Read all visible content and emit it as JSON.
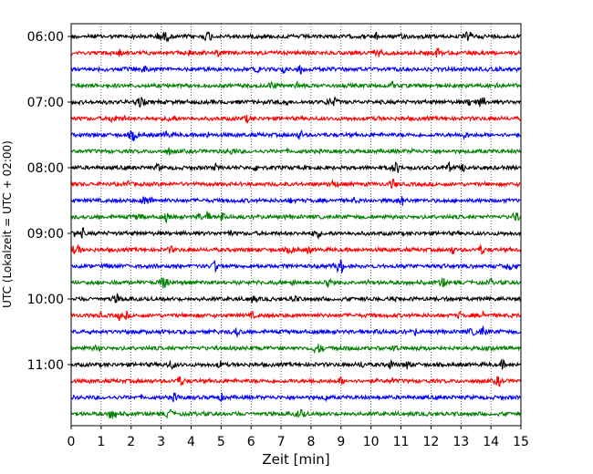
{
  "chart_data": {
    "type": "line",
    "subtype": "helicorder",
    "xlabel": "Zeit  [min]",
    "ylabel": "UTC (Lokalzeit = UTC + 02:00)",
    "xlim": [
      0,
      15
    ],
    "xticks": [
      0,
      1,
      2,
      3,
      4,
      5,
      6,
      7,
      8,
      9,
      10,
      11,
      12,
      13,
      14,
      15
    ],
    "yticks": [
      "06:00",
      "07:00",
      "08:00",
      "09:00",
      "10:00",
      "11:00"
    ],
    "grid": "vertical-dotted",
    "trace_colors": [
      "#000000",
      "#ff0000",
      "#0000ff",
      "#008000"
    ],
    "traces": [
      {
        "start": "06:00"
      },
      {
        "start": "06:15"
      },
      {
        "start": "06:30"
      },
      {
        "start": "06:45"
      },
      {
        "start": "07:00"
      },
      {
        "start": "07:15"
      },
      {
        "start": "07:30"
      },
      {
        "start": "07:45"
      },
      {
        "start": "08:00"
      },
      {
        "start": "08:15"
      },
      {
        "start": "08:30"
      },
      {
        "start": "08:45"
      },
      {
        "start": "09:00"
      },
      {
        "start": "09:15"
      },
      {
        "start": "09:30"
      },
      {
        "start": "09:45"
      },
      {
        "start": "10:00"
      },
      {
        "start": "10:15"
      },
      {
        "start": "10:30"
      },
      {
        "start": "10:45"
      },
      {
        "start": "11:00"
      },
      {
        "start": "11:15"
      },
      {
        "start": "11:30"
      },
      {
        "start": "11:45"
      }
    ]
  }
}
